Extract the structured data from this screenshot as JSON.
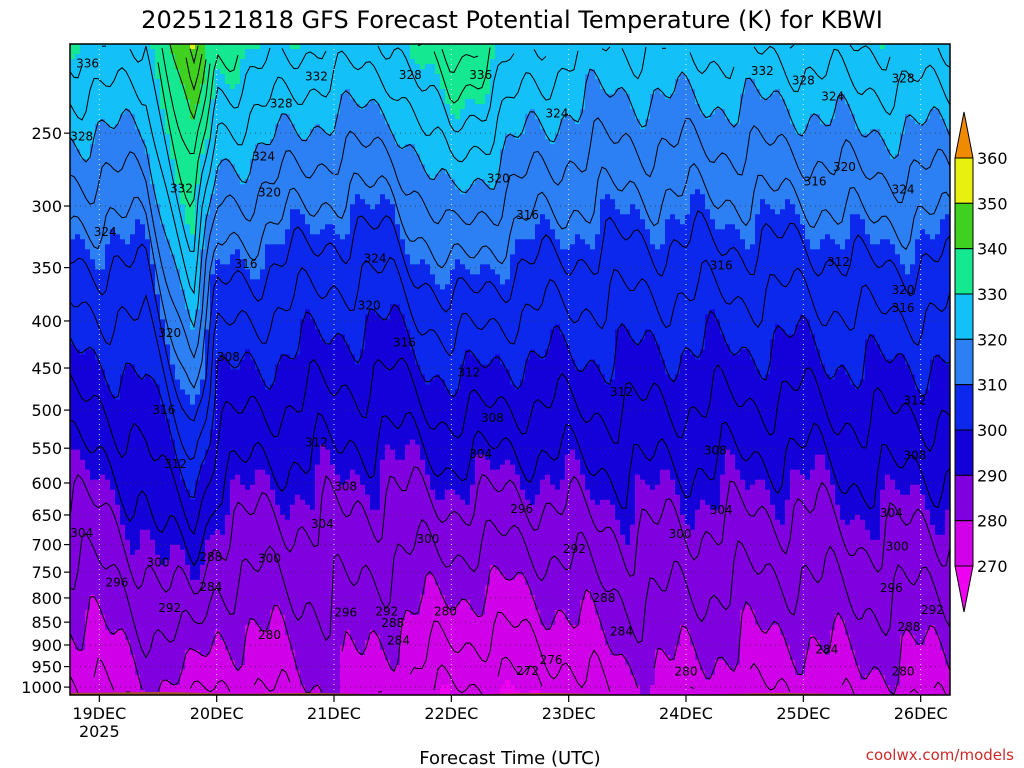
{
  "chart_data": {
    "type": "heatmap",
    "title": "2025121818 GFS Forecast Potential Temperature (K) for KBWI",
    "xlabel": "Forecast Time (UTC)",
    "x_ticks": [
      {
        "label": "19DEC",
        "sub": "2025",
        "day": 19
      },
      {
        "label": "20DEC",
        "sub": "",
        "day": 20
      },
      {
        "label": "21DEC",
        "sub": "",
        "day": 21
      },
      {
        "label": "22DEC",
        "sub": "",
        "day": 22
      },
      {
        "label": "23DEC",
        "sub": "",
        "day": 23
      },
      {
        "label": "24DEC",
        "sub": "",
        "day": 24
      },
      {
        "label": "25DEC",
        "sub": "",
        "day": 25
      },
      {
        "label": "26DEC",
        "sub": "",
        "day": 26
      }
    ],
    "xlim": [
      18.75,
      26.25
    ],
    "ylabel": "",
    "y_scale": "log",
    "y_ticks": [
      250,
      300,
      350,
      400,
      450,
      500,
      550,
      600,
      650,
      700,
      750,
      800,
      850,
      900,
      950,
      1000
    ],
    "ylim": [
      1020,
      200
    ],
    "colorbar": {
      "levels": [
        270,
        280,
        290,
        300,
        310,
        320,
        330,
        340,
        350,
        360
      ],
      "colors": {
        "lt270": "#f000f0",
        "270": "#d000e8",
        "280": "#8000e0",
        "290": "#1400d8",
        "300": "#0c28ec",
        "310": "#2c80f4",
        "320": "#14c0f8",
        "330": "#14e890",
        "340": "#40d020",
        "350": "#e8f010",
        "360": "#ffb000",
        "gt360": "#f08a00"
      },
      "triangles": "both-ends"
    },
    "terrain_color": "#a0522d",
    "grid": true,
    "grid_style": "dotted",
    "profiles": [
      {
        "day": 18.75,
        "base_theta": 274,
        "upper_theta": 329,
        "dip": 4
      },
      {
        "day": 19.0,
        "base_theta": 275,
        "upper_theta": 329,
        "dip": 4
      },
      {
        "day": 19.4,
        "base_theta": 279,
        "upper_theta": 327,
        "dip": 3
      },
      {
        "day": 19.8,
        "base_theta": 277,
        "upper_theta": 352,
        "dip": 2
      },
      {
        "day": 20.0,
        "base_theta": 275,
        "upper_theta": 333,
        "dip": 4
      },
      {
        "day": 20.5,
        "base_theta": 276,
        "upper_theta": 330,
        "dip": 5
      },
      {
        "day": 21.0,
        "base_theta": 280,
        "upper_theta": 327,
        "dip": 7
      },
      {
        "day": 21.5,
        "base_theta": 276,
        "upper_theta": 327,
        "dip": 6
      },
      {
        "day": 22.0,
        "base_theta": 271,
        "upper_theta": 339,
        "dip": 5
      },
      {
        "day": 22.5,
        "base_theta": 270,
        "upper_theta": 330,
        "dip": 2
      },
      {
        "day": 23.0,
        "base_theta": 273,
        "upper_theta": 325,
        "dip": 1
      },
      {
        "day": 23.5,
        "base_theta": 278,
        "upper_theta": 324,
        "dip": 3
      },
      {
        "day": 24.0,
        "base_theta": 278,
        "upper_theta": 325,
        "dip": 4
      },
      {
        "day": 24.5,
        "base_theta": 276,
        "upper_theta": 325,
        "dip": 3
      },
      {
        "day": 25.0,
        "base_theta": 276,
        "upper_theta": 326,
        "dip": 4
      },
      {
        "day": 25.5,
        "base_theta": 278,
        "upper_theta": 328,
        "dip": 4
      },
      {
        "day": 26.0,
        "base_theta": 277,
        "upper_theta": 328,
        "dip": 4
      },
      {
        "day": 26.25,
        "base_theta": 277,
        "upper_theta": 328,
        "dip": 4
      }
    ],
    "contour_labels": [
      {
        "text": "336",
        "day": 18.9,
        "p": 210
      },
      {
        "text": "328",
        "day": 18.85,
        "p": 252
      },
      {
        "text": "324",
        "day": 19.05,
        "p": 320
      },
      {
        "text": "332",
        "day": 19.7,
        "p": 287
      },
      {
        "text": "320",
        "day": 19.6,
        "p": 412
      },
      {
        "text": "316",
        "day": 19.55,
        "p": 500
      },
      {
        "text": "312",
        "day": 19.65,
        "p": 572
      },
      {
        "text": "304",
        "day": 18.85,
        "p": 680
      },
      {
        "text": "300",
        "day": 19.5,
        "p": 732
      },
      {
        "text": "296",
        "day": 19.15,
        "p": 770
      },
      {
        "text": "292",
        "day": 19.6,
        "p": 820
      },
      {
        "text": "288",
        "day": 19.95,
        "p": 722
      },
      {
        "text": "284",
        "day": 19.95,
        "p": 778
      },
      {
        "text": "280",
        "day": 20.45,
        "p": 878
      },
      {
        "text": "300",
        "day": 20.45,
        "p": 725
      },
      {
        "text": "308",
        "day": 20.1,
        "p": 438
      },
      {
        "text": "316",
        "day": 20.25,
        "p": 347
      },
      {
        "text": "320",
        "day": 20.45,
        "p": 290
      },
      {
        "text": "324",
        "day": 20.4,
        "p": 265
      },
      {
        "text": "328",
        "day": 20.55,
        "p": 232
      },
      {
        "text": "332",
        "day": 20.85,
        "p": 217
      },
      {
        "text": "324",
        "day": 21.35,
        "p": 342
      },
      {
        "text": "320",
        "day": 21.3,
        "p": 385
      },
      {
        "text": "316",
        "day": 21.6,
        "p": 422
      },
      {
        "text": "312",
        "day": 20.85,
        "p": 542
      },
      {
        "text": "308",
        "day": 21.1,
        "p": 605
      },
      {
        "text": "304",
        "day": 20.9,
        "p": 665
      },
      {
        "text": "300",
        "day": 21.8,
        "p": 690
      },
      {
        "text": "296",
        "day": 21.1,
        "p": 830
      },
      {
        "text": "292",
        "day": 21.45,
        "p": 828
      },
      {
        "text": "288",
        "day": 21.5,
        "p": 852
      },
      {
        "text": "284",
        "day": 21.55,
        "p": 890
      },
      {
        "text": "328",
        "day": 21.65,
        "p": 216
      },
      {
        "text": "336",
        "day": 22.25,
        "p": 216
      },
      {
        "text": "324",
        "day": 22.9,
        "p": 238
      },
      {
        "text": "320",
        "day": 22.4,
        "p": 280
      },
      {
        "text": "316",
        "day": 22.65,
        "p": 307
      },
      {
        "text": "312",
        "day": 22.15,
        "p": 455
      },
      {
        "text": "308",
        "day": 22.35,
        "p": 510
      },
      {
        "text": "304",
        "day": 22.25,
        "p": 558
      },
      {
        "text": "296",
        "day": 22.6,
        "p": 640
      },
      {
        "text": "292",
        "day": 23.05,
        "p": 708
      },
      {
        "text": "288",
        "day": 23.3,
        "p": 800
      },
      {
        "text": "284",
        "day": 23.45,
        "p": 870
      },
      {
        "text": "280",
        "day": 21.95,
        "p": 828
      },
      {
        "text": "276",
        "day": 22.85,
        "p": 935
      },
      {
        "text": "272",
        "day": 22.65,
        "p": 960
      },
      {
        "text": "312",
        "day": 23.45,
        "p": 478
      },
      {
        "text": "316",
        "day": 24.3,
        "p": 348
      },
      {
        "text": "308",
        "day": 24.25,
        "p": 553
      },
      {
        "text": "304",
        "day": 24.3,
        "p": 642
      },
      {
        "text": "300",
        "day": 23.95,
        "p": 682
      },
      {
        "text": "280",
        "day": 24.0,
        "p": 962
      },
      {
        "text": "332",
        "day": 24.65,
        "p": 214
      },
      {
        "text": "328",
        "day": 25.0,
        "p": 219
      },
      {
        "text": "324",
        "day": 25.25,
        "p": 228
      },
      {
        "text": "320",
        "day": 25.35,
        "p": 272
      },
      {
        "text": "316",
        "day": 25.1,
        "p": 282
      },
      {
        "text": "312",
        "day": 25.3,
        "p": 345
      },
      {
        "text": "284",
        "day": 25.2,
        "p": 910
      },
      {
        "text": "288",
        "day": 25.9,
        "p": 860
      },
      {
        "text": "292",
        "day": 26.1,
        "p": 825
      },
      {
        "text": "296",
        "day": 25.75,
        "p": 780
      },
      {
        "text": "300",
        "day": 25.8,
        "p": 703
      },
      {
        "text": "304",
        "day": 25.75,
        "p": 647
      },
      {
        "text": "308",
        "day": 25.95,
        "p": 560
      },
      {
        "text": "312",
        "day": 25.95,
        "p": 488
      },
      {
        "text": "316",
        "day": 25.85,
        "p": 387
      },
      {
        "text": "320",
        "day": 25.85,
        "p": 370
      },
      {
        "text": "324",
        "day": 25.85,
        "p": 288
      },
      {
        "text": "328",
        "day": 25.85,
        "p": 218
      },
      {
        "text": "280",
        "day": 25.85,
        "p": 962
      }
    ]
  },
  "credit": "coolwx.com/models"
}
